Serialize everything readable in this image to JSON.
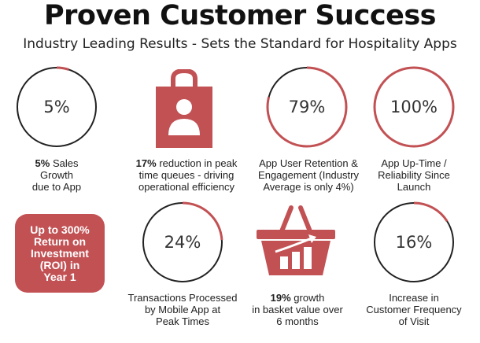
{
  "header": {
    "title": "Proven Customer Success",
    "subtitle": "Industry Leading Results - Sets the Standard for Hospitality Apps"
  },
  "colors": {
    "accent": "#c25154",
    "ring": "#222222"
  },
  "stats": {
    "sales": {
      "value": "5%",
      "progress": 0.05,
      "bold": "5%",
      "line1_rest": " Sales",
      "line2": "Growth",
      "line3": "due to App"
    },
    "queues": {
      "icon": "shopping-bag-person-icon",
      "bold": "17%",
      "line1_rest": " reduction in peak",
      "line2": "time queues - driving",
      "line3": "operational efficiency"
    },
    "retention": {
      "value": "79%",
      "progress": 0.79,
      "line1": "App User Retention &",
      "line2": "Engagement (Industry",
      "line3": "Average is only 4%)"
    },
    "uptime": {
      "value": "100%",
      "progress": 1.0,
      "line1": "App Up-Time /",
      "line2": "Reliability Since",
      "line3": "Launch"
    },
    "roi": {
      "line1": "Up to 300%",
      "line2": "Return on",
      "line3": "Investment",
      "line4": "(ROI) in",
      "line5": "Year 1"
    },
    "transactions": {
      "value": "24%",
      "progress": 0.24,
      "line1": "Transactions Processed",
      "line2": "by Mobile App at",
      "line3": "Peak Times"
    },
    "basket": {
      "icon": "basket-growth-chart-icon",
      "bold": "19%",
      "line1_rest": " growth",
      "line2": "in basket value over",
      "line3": "6 months"
    },
    "frequency": {
      "value": "16%",
      "progress": 0.16,
      "line1": "Increase in",
      "line2": "Customer Frequency",
      "line3": "of Visit"
    }
  }
}
